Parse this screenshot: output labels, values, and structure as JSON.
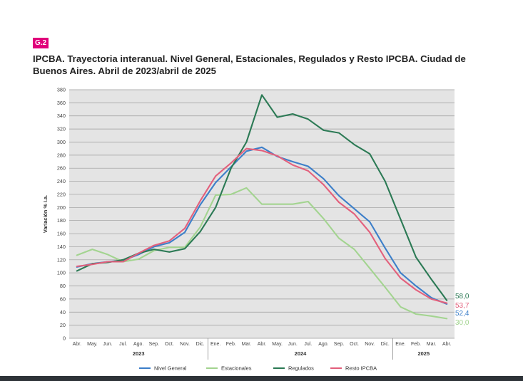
{
  "figure_tag": "G.2",
  "chart_data": {
    "type": "line",
    "title": "IPCBA. Trayectoria interanual. Nivel General, Estacionales, Regulados y Resto IPCBA. Ciudad de Buenos Aires. Abril de 2023/abril de 2025",
    "xlabel": "",
    "ylabel": "Variación % i.a.",
    "ylim": [
      0,
      380
    ],
    "yticks": [
      0,
      20,
      40,
      60,
      80,
      100,
      120,
      140,
      160,
      180,
      200,
      220,
      240,
      260,
      280,
      300,
      320,
      340,
      360,
      380
    ],
    "grid": true,
    "categories": [
      "Abr.",
      "May.",
      "Jun.",
      "Jul.",
      "Ago.",
      "Sep.",
      "Oct.",
      "Nov.",
      "Dic.",
      "Ene.",
      "Feb.",
      "Mar.",
      "Abr.",
      "May.",
      "Jun.",
      "Jul.",
      "Ago.",
      "Sep.",
      "Oct.",
      "Nov.",
      "Dic.",
      "Ene.",
      "Feb.",
      "Mar.",
      "Abr."
    ],
    "year_groups": [
      {
        "label": "2023",
        "start": 0,
        "end": 8
      },
      {
        "label": "2024",
        "start": 9,
        "end": 20
      },
      {
        "label": "2025",
        "start": 21,
        "end": 24
      }
    ],
    "series": [
      {
        "name": "Nivel General",
        "color": "#3d7fc9",
        "end_label": "52,4",
        "values": [
          109,
          114,
          117,
          119,
          128,
          140,
          146,
          162,
          204,
          238,
          262,
          286,
          292,
          278,
          270,
          263,
          244,
          218,
          198,
          178,
          138,
          100,
          80,
          62,
          52.4
        ]
      },
      {
        "name": "Estacionales",
        "color": "#a3d490",
        "end_label": "30,0",
        "values": [
          127,
          136,
          128,
          117,
          121,
          134,
          139,
          139,
          170,
          219,
          220,
          230,
          205,
          205,
          205,
          209,
          183,
          153,
          136,
          107,
          78,
          48,
          37,
          34,
          30.0
        ]
      },
      {
        "name": "Regulados",
        "color": "#2c7a55",
        "end_label": "58,0",
        "values": [
          103,
          114,
          116,
          120,
          130,
          136,
          132,
          137,
          163,
          200,
          260,
          300,
          372,
          338,
          343,
          335,
          318,
          314,
          296,
          282,
          240,
          182,
          124,
          90,
          58.0
        ]
      },
      {
        "name": "Resto IPCBA",
        "color": "#e3607c",
        "end_label": "53,7",
        "values": [
          110,
          113,
          117,
          117,
          130,
          142,
          149,
          168,
          210,
          248,
          268,
          290,
          287,
          279,
          265,
          256,
          235,
          208,
          190,
          162,
          122,
          92,
          74,
          60,
          53.7
        ]
      }
    ],
    "legend_position": "bottom"
  }
}
